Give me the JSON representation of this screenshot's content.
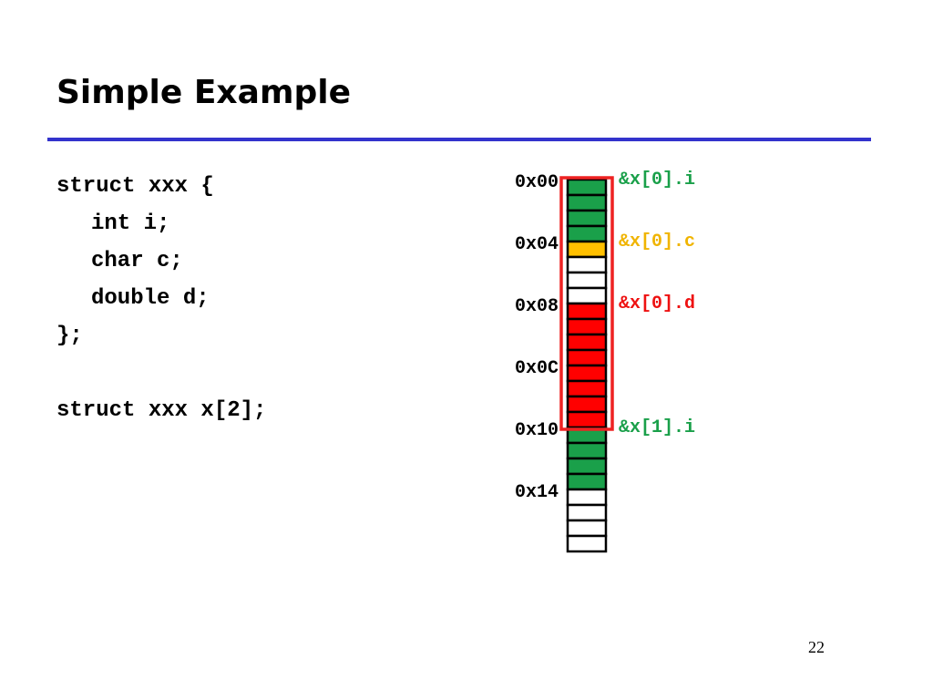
{
  "slide": {
    "title": "Simple Example",
    "page_number": "22"
  },
  "code": {
    "lines": [
      "struct xxx {",
      "int i;",
      "char c;",
      "double d;",
      "};",
      "",
      "struct xxx x[2];"
    ]
  },
  "diagram": {
    "cell_count": 24,
    "cells": [
      "green",
      "green",
      "green",
      "green",
      "yellow",
      "white",
      "white",
      "white",
      "red",
      "red",
      "red",
      "red",
      "red",
      "red",
      "red",
      "red",
      "green",
      "green",
      "green",
      "green",
      "white",
      "white",
      "white",
      "white"
    ],
    "addresses": [
      {
        "label": "0x00",
        "cell": 0
      },
      {
        "label": "0x04",
        "cell": 4
      },
      {
        "label": "0x08",
        "cell": 8
      },
      {
        "label": "0x0C",
        "cell": 12
      },
      {
        "label": "0x10",
        "cell": 16
      },
      {
        "label": "0x14",
        "cell": 20
      }
    ],
    "pointers": [
      {
        "label": "&x[0].i",
        "cell": 0,
        "color": "#1aa04a"
      },
      {
        "label": "&x[0].c",
        "cell": 4,
        "color": "#f0b400"
      },
      {
        "label": "&x[0].d",
        "cell": 8,
        "color": "#ee1111"
      },
      {
        "label": "&x[1].i",
        "cell": 16,
        "color": "#1aa04a"
      }
    ],
    "highlight": {
      "from_cell": 0,
      "to_cell": 16,
      "color": "#ee2222"
    },
    "colors": {
      "green": "#1aa04a",
      "yellow": "#ffc000",
      "red": "#ff0000",
      "white": "#ffffff",
      "border": "#000000",
      "address_text": "#000000"
    }
  }
}
